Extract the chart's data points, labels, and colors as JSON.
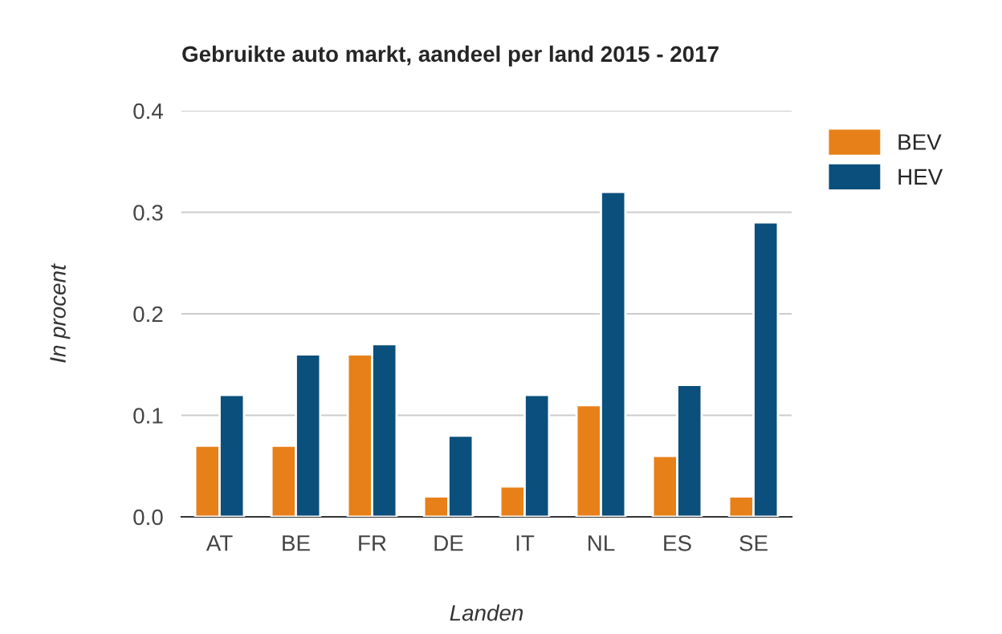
{
  "chart_data": {
    "type": "bar",
    "title": "Gebruikte auto markt, aandeel per land 2015 - 2017",
    "xlabel": "Landen",
    "ylabel": "In procent",
    "categories": [
      "AT",
      "BE",
      "FR",
      "DE",
      "IT",
      "NL",
      "ES",
      "SE"
    ],
    "series": [
      {
        "name": "BEV",
        "color": "#e8801a",
        "values": [
          0.07,
          0.07,
          0.16,
          0.02,
          0.03,
          0.11,
          0.06,
          0.02
        ]
      },
      {
        "name": "HEV",
        "color": "#0b4f7c",
        "values": [
          0.12,
          0.16,
          0.17,
          0.08,
          0.12,
          0.32,
          0.13,
          0.29
        ]
      }
    ],
    "ylim": [
      0,
      0.4
    ],
    "yticks": [
      {
        "value": 0,
        "label": "0.0"
      },
      {
        "value": 0.1,
        "label": "0.1"
      },
      {
        "value": 0.2,
        "label": "0.2"
      },
      {
        "value": 0.3,
        "label": "0.3"
      },
      {
        "value": 0.4,
        "label": "0.4"
      }
    ],
    "grid": "y",
    "legend": "top right"
  }
}
